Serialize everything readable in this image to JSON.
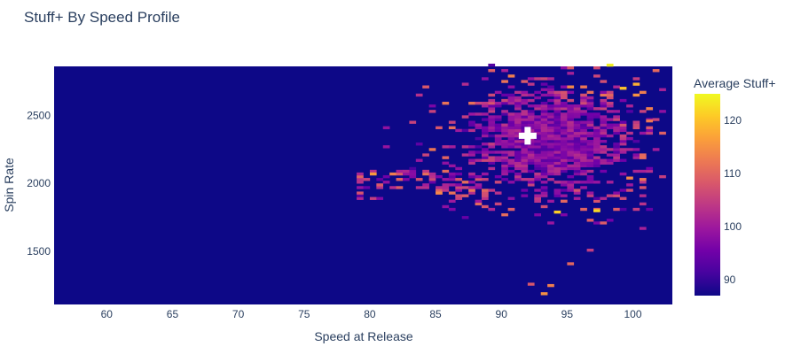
{
  "chart_data": {
    "type": "heatmap",
    "title": "Stuff+ By Speed Profile",
    "xlabel": "Speed at Release",
    "ylabel": "Spin Rate",
    "xlim": [
      56,
      103
    ],
    "ylim": [
      1110,
      2860
    ],
    "x_ticks": [
      60,
      65,
      70,
      75,
      80,
      85,
      90,
      95,
      100
    ],
    "y_ticks": [
      1500,
      2000,
      2500
    ],
    "colorbar": {
      "title": "Average Stuff+",
      "range": [
        87,
        125
      ],
      "ticks": [
        90,
        100,
        110,
        120
      ],
      "colorscale": [
        "#0d0887",
        "#46039f",
        "#7201a8",
        "#9c179e",
        "#bd3786",
        "#d8576b",
        "#ed7953",
        "#fb9f3a",
        "#fdca26",
        "#f0f921"
      ]
    },
    "background_value": 87,
    "cluster": {
      "center_speed": 93.5,
      "center_spin": 2300,
      "speed_spread": 5.2,
      "spin_spread": 330,
      "typical_value": 97
    },
    "marker": {
      "symbol": "cross",
      "speed": 92,
      "spin": 2350,
      "color": "#ffffff"
    },
    "notable_cells": [
      {
        "speed": 100,
        "spin": 2720,
        "value": 118
      },
      {
        "speed": 99,
        "spin": 2690,
        "value": 120
      },
      {
        "speed": 97,
        "spin": 1790,
        "value": 122
      },
      {
        "speed": 94,
        "spin": 1780,
        "value": 121
      },
      {
        "speed": 95,
        "spin": 1400,
        "value": 110
      },
      {
        "speed": 93,
        "spin": 1180,
        "value": 115
      },
      {
        "speed": 93.5,
        "spin": 1240,
        "value": 113
      },
      {
        "speed": 92,
        "spin": 1250,
        "value": 108
      },
      {
        "speed": 80,
        "spin": 2060,
        "value": 116
      },
      {
        "speed": 84.5,
        "spin": 2240,
        "value": 112
      },
      {
        "speed": 85,
        "spin": 1920,
        "value": 114
      },
      {
        "speed": 101,
        "spin": 2450,
        "value": 112
      },
      {
        "speed": 100.5,
        "spin": 2180,
        "value": 111
      },
      {
        "speed": 99.5,
        "spin": 2030,
        "value": 114
      }
    ]
  }
}
